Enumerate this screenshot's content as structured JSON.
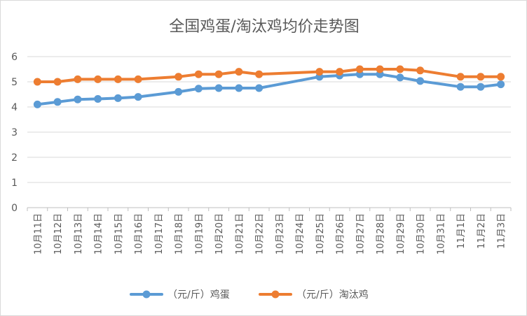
{
  "chart_data": {
    "type": "line",
    "title": "全国鸡蛋/淘汰鸡均价走势图",
    "xlabel": "",
    "ylabel": "",
    "ylim": [
      0,
      6
    ],
    "yticks": [
      "0",
      "1",
      "2",
      "3",
      "4",
      "5",
      "6"
    ],
    "grid": true,
    "legend_position": "bottom",
    "categories": [
      "10月11日",
      "10月12日",
      "10月13日",
      "10月14日",
      "10月15日",
      "10月16日",
      "10月17日",
      "10月18日",
      "10月19日",
      "10月20日",
      "10月21日",
      "10月22日",
      "10月23日",
      "10月24日",
      "10月25日",
      "10月26日",
      "10月27日",
      "10月28日",
      "10月29日",
      "10月30日",
      "10月31日",
      "11月1日",
      "11月2日",
      "11月3日"
    ],
    "series": [
      {
        "name": "（元/斤）鸡蛋",
        "color": "#5b9bd5",
        "values": [
          4.1,
          4.2,
          4.3,
          4.32,
          4.35,
          4.4,
          null,
          4.6,
          4.73,
          4.75,
          4.75,
          4.75,
          null,
          null,
          5.2,
          5.25,
          5.3,
          5.3,
          5.17,
          5.03,
          null,
          4.8,
          4.8,
          4.9
        ]
      },
      {
        "name": "（元/斤）淘汰鸡",
        "color": "#ed7d31",
        "values": [
          5.0,
          5.0,
          5.1,
          5.1,
          5.1,
          5.1,
          null,
          5.2,
          5.3,
          5.3,
          5.4,
          5.3,
          null,
          null,
          5.4,
          5.4,
          5.5,
          5.5,
          5.5,
          5.45,
          null,
          5.2,
          5.2,
          5.2
        ]
      }
    ]
  }
}
